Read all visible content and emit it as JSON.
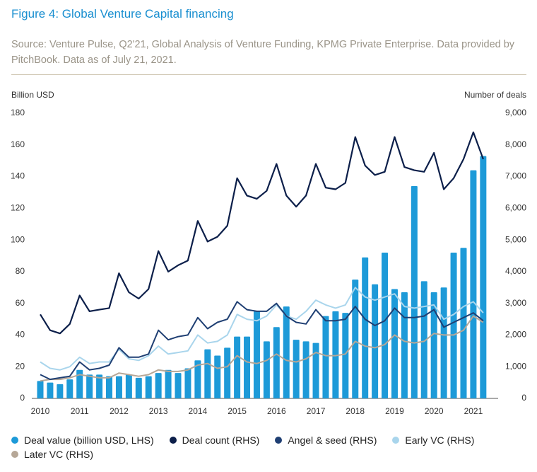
{
  "chart_data": {
    "type": "combo",
    "title": "Figure 4: Global Venture Capital financing",
    "subtitle": "Source: Venture Pulse, Q2'21, Global Analysis of Venture Funding, KPMG Private Enterprise. Data provided by PitchBook. Data as of July 21, 2021.",
    "y_label": "Billion USD",
    "y2_label": "Number of deals",
    "categories": [
      "2010",
      null,
      null,
      null,
      "2011",
      null,
      null,
      null,
      "2012",
      null,
      null,
      null,
      "2013",
      null,
      null,
      null,
      "2014",
      null,
      null,
      null,
      "2015",
      null,
      null,
      null,
      "2016",
      null,
      null,
      null,
      "2017",
      null,
      null,
      null,
      "2018",
      null,
      null,
      null,
      "2019",
      null,
      null,
      null,
      "2020",
      null,
      null,
      null,
      "2021",
      null
    ],
    "ylim": [
      0,
      180
    ],
    "yticks": [
      0,
      20,
      40,
      60,
      80,
      100,
      120,
      140,
      160,
      180
    ],
    "y2lim": [
      0,
      9000
    ],
    "y2ticks": [
      0,
      {
        "value": 1000,
        "label": "1,000"
      },
      {
        "value": 2000,
        "label": "2,000"
      },
      {
        "value": 3000,
        "label": "3,000"
      },
      {
        "value": 4000,
        "label": "4,000"
      },
      {
        "value": 5000,
        "label": "5,000"
      },
      {
        "value": 6000,
        "label": "6,000"
      },
      {
        "value": 7000,
        "label": "7,000"
      },
      {
        "value": 8000,
        "label": "8,000"
      },
      {
        "value": 9000,
        "label": "9,000"
      }
    ],
    "grid": false,
    "series": [
      {
        "name": "Deal value (billion USD, LHS)",
        "type": "bar",
        "color": "#1d9ad8",
        "axis": "y",
        "values": [
          11,
          10,
          9,
          12,
          18,
          15,
          15,
          14,
          14,
          15,
          13,
          14,
          16,
          18,
          16,
          19,
          24,
          31,
          27,
          32,
          39,
          39,
          55,
          36,
          45,
          58,
          37,
          36,
          35,
          52,
          55,
          54,
          75,
          89,
          72,
          92,
          69,
          67,
          134,
          74,
          67,
          70,
          92,
          95,
          144,
          153
        ]
      },
      {
        "name": "Deal count (RHS)",
        "type": "line",
        "color": "#0c1f4a",
        "axis": "y2",
        "values": [
          2650,
          2150,
          2050,
          2350,
          3250,
          2750,
          2800,
          2850,
          3950,
          3350,
          3150,
          3450,
          4650,
          4000,
          4200,
          4350,
          5600,
          4950,
          5100,
          5450,
          6950,
          6400,
          6300,
          6550,
          7400,
          6400,
          6050,
          6400,
          7400,
          6650,
          6600,
          6800,
          8250,
          7350,
          7050,
          7150,
          8250,
          7300,
          7200,
          7150,
          7750,
          6600,
          6950,
          7550,
          8400,
          7550
        ]
      },
      {
        "name": "Angel & seed (RHS)",
        "type": "line",
        "color": "#1f3f73",
        "axis": "y2",
        "values": [
          750,
          600,
          650,
          700,
          1150,
          900,
          950,
          1050,
          1600,
          1300,
          1300,
          1400,
          2150,
          1850,
          1950,
          2000,
          2550,
          2200,
          2400,
          2500,
          3050,
          2800,
          2750,
          2750,
          3000,
          2600,
          2400,
          2350,
          2800,
          2450,
          2450,
          2500,
          2900,
          2500,
          2300,
          2450,
          2850,
          2550,
          2550,
          2600,
          2800,
          2250,
          2400,
          2550,
          2700,
          2450
        ]
      },
      {
        "name": "Early VC (RHS)",
        "type": "line",
        "color": "#a9d5ec",
        "axis": "y2",
        "values": [
          1150,
          950,
          900,
          1000,
          1300,
          1100,
          1150,
          1150,
          1550,
          1250,
          1200,
          1350,
          1650,
          1400,
          1450,
          1500,
          2000,
          1750,
          1800,
          2000,
          2650,
          2500,
          2450,
          2600,
          2950,
          2600,
          2500,
          2750,
          3100,
          2950,
          2850,
          2950,
          3500,
          3200,
          3100,
          3200,
          3300,
          2900,
          2850,
          2900,
          2950,
          2500,
          2650,
          2900,
          3050,
          2700
        ]
      },
      {
        "name": "Later VC (RHS)",
        "type": "line",
        "color": "#b6a797",
        "axis": "y2",
        "values": [
          550,
          600,
          600,
          650,
          750,
          700,
          650,
          650,
          800,
          750,
          700,
          750,
          900,
          850,
          850,
          900,
          1050,
          1100,
          950,
          1000,
          1350,
          1150,
          1100,
          1200,
          1400,
          1200,
          1150,
          1250,
          1450,
          1350,
          1350,
          1400,
          1800,
          1650,
          1600,
          1700,
          2000,
          1800,
          1750,
          1800,
          2050,
          2000,
          2000,
          2150,
          2600,
          2400
        ]
      }
    ]
  }
}
